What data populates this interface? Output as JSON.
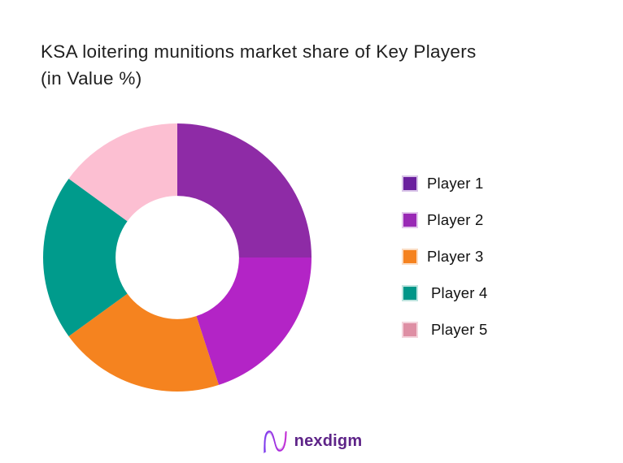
{
  "page": {
    "background": "#ffffff"
  },
  "title": {
    "line1": "KSA loitering munitions market share of Key Players",
    "line2": "(in Value %)",
    "color": "#1f1f1f"
  },
  "chart_data": {
    "type": "pie",
    "subtype": "donut",
    "title": "KSA loitering munitions market share of Key Players (in Value %)",
    "value_unit": "percent of market value",
    "start_angle_deg": 0,
    "direction": "clockwise",
    "inner_radius_ratio": 0.46,
    "legend_position": "right",
    "grid": false,
    "categories": [
      "Player 1",
      "Player 2",
      "Player 3",
      "Player 4",
      "Player 5"
    ],
    "values": [
      25,
      20,
      20,
      20,
      15
    ],
    "slices": [
      {
        "label": "Player 1",
        "value": 25,
        "slice_color": "#8E2BA6",
        "legend_color": "#6A1F9E",
        "legend_border": "#D8C3E8"
      },
      {
        "label": "Player 2",
        "value": 20,
        "slice_color": "#B324C6",
        "legend_color": "#9929B5",
        "legend_border": "#E3C6EC"
      },
      {
        "label": "Player 3",
        "value": 20,
        "slice_color": "#F5831F",
        "legend_color": "#F5821F",
        "legend_border": "#FBDCC2"
      },
      {
        "label": "Player 4",
        "value": 20,
        "slice_color": "#009B8C",
        "legend_color": "#009688",
        "legend_border": "#BDE4DF"
      },
      {
        "label": "Player 5",
        "value": 15,
        "slice_color": "#FCBFD2",
        "legend_color": "#DE8FA4",
        "legend_border": "#F4D4DC"
      }
    ]
  },
  "logo": {
    "text": "nexdigm",
    "text_color": "#5E2488",
    "icon_gradient_start": "#7C3AED",
    "icon_gradient_end": "#C026D3"
  }
}
